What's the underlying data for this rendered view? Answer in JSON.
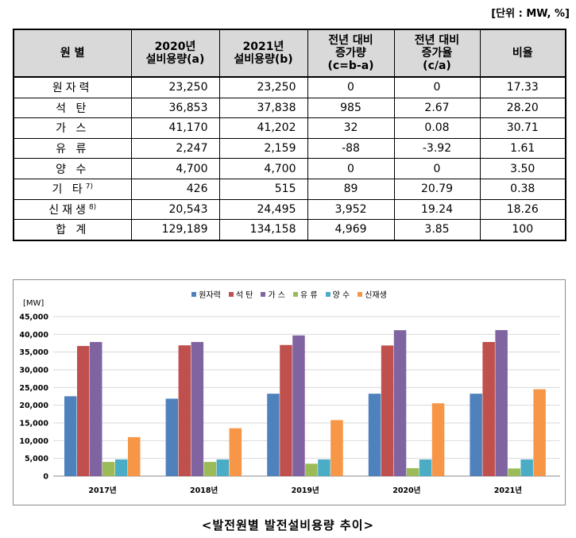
{
  "unit_note": "[단위 : MW, %]",
  "table": {
    "headers": {
      "source": "원 별",
      "cap2020_l1": "2020년",
      "cap2020_l2": "설비용량(a)",
      "cap2021_l1": "2021년",
      "cap2021_l2": "설비용량(b)",
      "diff_l1": "전년 대비",
      "diff_l2": "증가량",
      "diff_l3": "(c=b-a)",
      "rate_l1": "전년 대비",
      "rate_l2": "증가율",
      "rate_l3": "(c/a)",
      "share": "비율"
    },
    "rows": [
      {
        "name": "원자력",
        "sup": "",
        "a": "23,250",
        "b": "23,250",
        "c": "0",
        "rate": "0",
        "share": "17.33"
      },
      {
        "name": "석 탄",
        "sup": "",
        "a": "36,853",
        "b": "37,838",
        "c": "985",
        "rate": "2.67",
        "share": "28.20"
      },
      {
        "name": "가 스",
        "sup": "",
        "a": "41,170",
        "b": "41,202",
        "c": "32",
        "rate": "0.08",
        "share": "30.71"
      },
      {
        "name": "유 류",
        "sup": "",
        "a": "2,247",
        "b": "2,159",
        "c": "-88",
        "rate": "-3.92",
        "share": "1.61"
      },
      {
        "name": "양 수",
        "sup": "",
        "a": "4,700",
        "b": "4,700",
        "c": "0",
        "rate": "0",
        "share": "3.50"
      },
      {
        "name": "기 타",
        "sup": "7)",
        "a": "426",
        "b": "515",
        "c": "89",
        "rate": "20.79",
        "share": "0.38"
      },
      {
        "name": "신재생",
        "sup": "8)",
        "a": "20,543",
        "b": "24,495",
        "c": "3,952",
        "rate": "19.24",
        "share": "18.26"
      },
      {
        "name": "합 계",
        "sup": "",
        "a": "129,189",
        "b": "134,158",
        "c": "4,969",
        "rate": "3.85",
        "share": "100"
      }
    ]
  },
  "chart_data": {
    "type": "bar",
    "ylabel": "[MW]",
    "ylim": [
      0,
      45000
    ],
    "yticks": [
      "0",
      "5,000",
      "10,000",
      "15,000",
      "20,000",
      "25,000",
      "30,000",
      "35,000",
      "40,000",
      "45,000"
    ],
    "categories": [
      "2017년",
      "2018년",
      "2019년",
      "2020년",
      "2021년"
    ],
    "series": [
      {
        "name": "원자력",
        "color": "#4f81bd",
        "values": [
          22529,
          21850,
          23250,
          23250,
          23250
        ]
      },
      {
        "name": "석 탄",
        "color": "#c0504d",
        "values": [
          36709,
          36899,
          36989,
          36853,
          37838
        ]
      },
      {
        "name": "가 스",
        "color": "#8064a2",
        "values": [
          37838,
          37838,
          39689,
          41170,
          41202
        ]
      },
      {
        "name": "유 류",
        "color": "#9bbb59",
        "values": [
          4000,
          4000,
          3500,
          2247,
          2159
        ]
      },
      {
        "name": "양 수",
        "color": "#4bacc6",
        "values": [
          4700,
          4700,
          4700,
          4700,
          4700
        ]
      },
      {
        "name": "신재생",
        "color": "#f79646",
        "values": [
          11000,
          13500,
          15800,
          20543,
          24495
        ]
      }
    ],
    "legend_position": "top"
  },
  "caption": "<발전원별 발전설비용량 추이>"
}
